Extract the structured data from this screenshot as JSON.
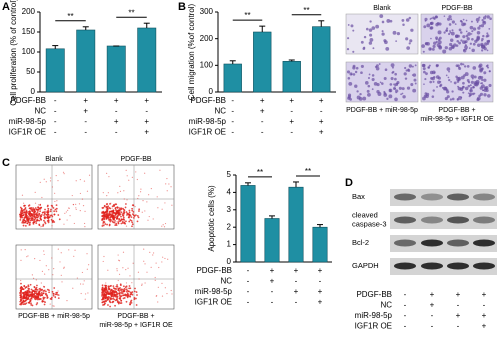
{
  "panel_labels": [
    "A",
    "B",
    "C",
    "D"
  ],
  "chart_data": [
    {
      "type": "bar",
      "ylabel": "Cell proliferation (% of control)",
      "color": "#1f8fa3",
      "values": [
        108,
        155,
        115,
        160
      ],
      "errors": [
        8,
        8,
        0,
        12
      ],
      "ylim": [
        0,
        200
      ],
      "yticks": [
        0,
        50,
        100,
        150,
        200
      ],
      "annotations": [
        "**",
        "**"
      ],
      "conditions": [
        {
          "label": "PDGF-BB",
          "signs": [
            "-",
            "+",
            "+",
            "+"
          ]
        },
        {
          "label": "NC",
          "signs": [
            "-",
            "+",
            "-",
            "-"
          ]
        },
        {
          "label": "miR-98-5p",
          "signs": [
            "-",
            "-",
            "+",
            "+"
          ]
        },
        {
          "label": "IGF1R OE",
          "signs": [
            "-",
            "-",
            "-",
            "+"
          ]
        }
      ]
    },
    {
      "type": "bar",
      "ylabel": "Cell migration (%of control)",
      "color": "#1f8fa3",
      "values": [
        105,
        225,
        115,
        245
      ],
      "errors": [
        12,
        22,
        5,
        22
      ],
      "ylim": [
        0,
        300
      ],
      "yticks": [
        0,
        100,
        200,
        300
      ],
      "annotations": [
        "**",
        "**"
      ],
      "conditions": [
        {
          "label": "PDGF-BB",
          "signs": [
            "-",
            "+",
            "+",
            "+"
          ]
        },
        {
          "label": "NC",
          "signs": [
            "-",
            "+",
            "-",
            "-"
          ]
        },
        {
          "label": "miR-98-5p",
          "signs": [
            "-",
            "-",
            "+",
            "+"
          ]
        },
        {
          "label": "IGF1R OE",
          "signs": [
            "-",
            "-",
            "-",
            "+"
          ]
        }
      ]
    },
    {
      "type": "bar",
      "ylabel": "Apoptotic cells (%)",
      "color": "#1f8fa3",
      "values": [
        4.4,
        2.5,
        4.3,
        2.0
      ],
      "errors": [
        0.15,
        0.15,
        0.3,
        0.15
      ],
      "ylim": [
        0,
        5
      ],
      "yticks": [
        0,
        1,
        2,
        3,
        4,
        5
      ],
      "annotations": [
        "**",
        "**"
      ],
      "conditions": [
        {
          "label": "PDGF-BB",
          "signs": [
            "-",
            "+",
            "+",
            "+"
          ]
        },
        {
          "label": "NC",
          "signs": [
            "-",
            "+",
            "-",
            "-"
          ]
        },
        {
          "label": "miR-98-5p",
          "signs": [
            "-",
            "-",
            "+",
            "+"
          ]
        },
        {
          "label": "IGF1R OE",
          "signs": [
            "-",
            "-",
            "-",
            "+"
          ]
        }
      ]
    }
  ],
  "migration_images": {
    "labels": [
      [
        "Blank"
      ],
      [
        "PDGF-BB"
      ],
      [
        "PDGF-BB + miR-98-5p"
      ],
      [
        "PDGF-BB +",
        "miR-98-5p + IGF1R OE"
      ]
    ]
  },
  "flow_plots": {
    "labels": [
      [
        "Blank"
      ],
      [
        "PDGF-BB"
      ],
      [
        "PDGF-BB + miR-98-5p"
      ],
      [
        "PDGF-BB +",
        "miR-98-5p + IGF1R OE"
      ]
    ]
  },
  "western_blot": {
    "bands": [
      [
        "Bax"
      ],
      [
        "cleaved",
        "caspase-3"
      ],
      [
        "Bcl-2"
      ],
      [
        "GAPDH"
      ]
    ],
    "conditions": [
      {
        "label": "PDGF-BB",
        "signs": [
          "-",
          "+",
          "+",
          "+"
        ]
      },
      {
        "label": "NC",
        "signs": [
          "-",
          "+",
          "-",
          "-"
        ]
      },
      {
        "label": "miR-98-5p",
        "signs": [
          "-",
          "-",
          "+",
          "+"
        ]
      },
      {
        "label": "IGF1R OE",
        "signs": [
          "-",
          "-",
          "-",
          "+"
        ]
      }
    ]
  }
}
